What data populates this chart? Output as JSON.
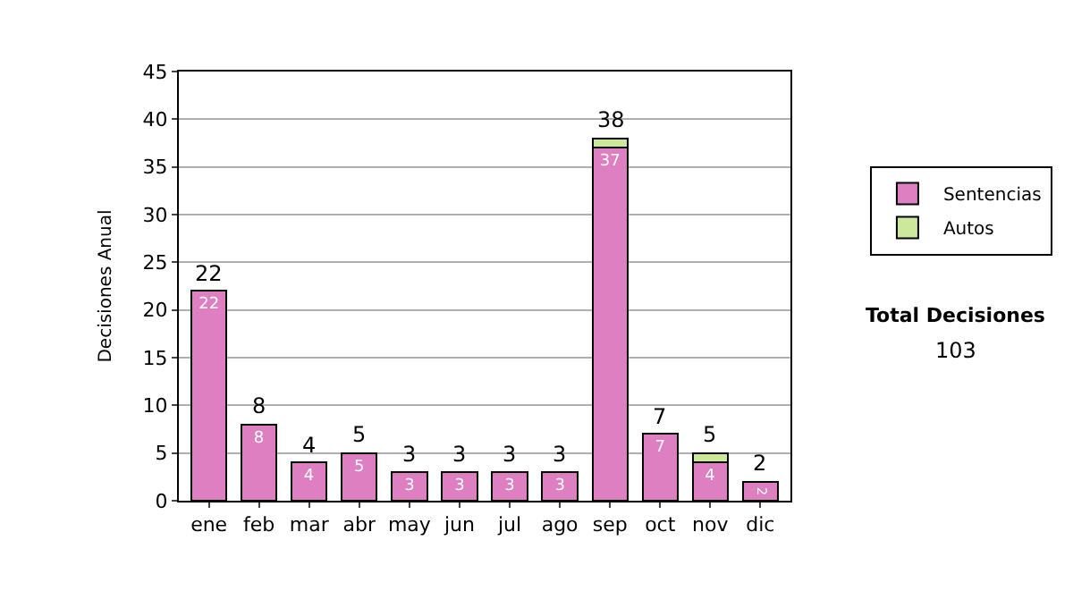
{
  "chart_data": {
    "type": "bar",
    "stacked": true,
    "ylabel": "Decisiones Anual",
    "categories": [
      "ene",
      "feb",
      "mar",
      "abr",
      "may",
      "jun",
      "jul",
      "ago",
      "sep",
      "oct",
      "nov",
      "dic"
    ],
    "series": [
      {
        "name": "Sentencias",
        "color": "#dd7fc0",
        "values": [
          22,
          8,
          4,
          5,
          3,
          3,
          3,
          3,
          37,
          7,
          4,
          2
        ],
        "value_labels": [
          "22",
          "8",
          "4",
          "5",
          "3",
          "3",
          "3",
          "3",
          "37",
          "7",
          "4",
          "2"
        ]
      },
      {
        "name": "Autos",
        "color": "#cce89a",
        "values": [
          null,
          null,
          null,
          null,
          null,
          null,
          null,
          null,
          1,
          null,
          1,
          null
        ]
      }
    ],
    "totals": [
      "22",
      "8",
      "4",
      "5",
      "3",
      "3",
      "3",
      "3",
      "38",
      "7",
      "5",
      "2"
    ],
    "ylim": [
      0,
      45
    ],
    "yticks": [
      0,
      5,
      10,
      15,
      20,
      25,
      30,
      35,
      40,
      45
    ],
    "grid": "y",
    "legend": "right",
    "annotations": [
      "Total Decisiones",
      "103"
    ]
  }
}
